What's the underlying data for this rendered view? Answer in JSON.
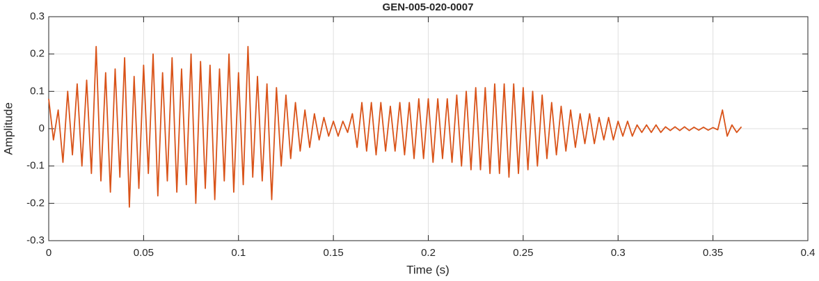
{
  "chart_data": {
    "type": "line",
    "title": "GEN-005-020-0007",
    "x_label": "Time (s)",
    "y_label": "Amplitude",
    "xlim": [
      0,
      0.4
    ],
    "xticks": [
      0,
      0.05,
      0.1,
      0.15,
      0.2,
      0.25,
      0.3,
      0.35,
      0.4
    ],
    "ylim": [
      -0.3,
      0.3
    ],
    "yticks": [
      -0.3,
      -0.2,
      -0.1,
      0,
      0.1,
      0.2,
      0.3
    ],
    "grid": true,
    "x": [
      0,
      0.0025,
      0.005,
      0.0075,
      0.01,
      0.0125,
      0.015,
      0.0175,
      0.02,
      0.0225,
      0.025,
      0.0275,
      0.03,
      0.0325,
      0.035,
      0.0375,
      0.04,
      0.0425,
      0.045,
      0.0475,
      0.05,
      0.0525,
      0.055,
      0.0575,
      0.06,
      0.0625,
      0.065,
      0.0675,
      0.07,
      0.0725,
      0.075,
      0.0775,
      0.08,
      0.0825,
      0.085,
      0.0875,
      0.09,
      0.0925,
      0.095,
      0.0975,
      0.1,
      0.1025,
      0.105,
      0.1075,
      0.11,
      0.1125,
      0.115,
      0.1175,
      0.12,
      0.1225,
      0.125,
      0.1275,
      0.13,
      0.1325,
      0.135,
      0.1375,
      0.14,
      0.1425,
      0.145,
      0.1475,
      0.15,
      0.1525,
      0.155,
      0.1575,
      0.16,
      0.1625,
      0.165,
      0.1675,
      0.17,
      0.1725,
      0.175,
      0.1775,
      0.18,
      0.1825,
      0.185,
      0.1875,
      0.19,
      0.1925,
      0.195,
      0.1975,
      0.2,
      0.2025,
      0.205,
      0.2075,
      0.21,
      0.2125,
      0.215,
      0.2175,
      0.22,
      0.2225,
      0.225,
      0.2275,
      0.23,
      0.2325,
      0.235,
      0.2375,
      0.24,
      0.2425,
      0.245,
      0.2475,
      0.25,
      0.2525,
      0.255,
      0.2575,
      0.26,
      0.2625,
      0.265,
      0.2675,
      0.27,
      0.2725,
      0.275,
      0.2775,
      0.28,
      0.2825,
      0.285,
      0.2875,
      0.29,
      0.2925,
      0.295,
      0.2975,
      0.3,
      0.3025,
      0.305,
      0.3075,
      0.31,
      0.3125,
      0.315,
      0.3175,
      0.32,
      0.3225,
      0.325,
      0.3275,
      0.33,
      0.3325,
      0.335,
      0.3375,
      0.34,
      0.3425,
      0.345,
      0.3475,
      0.35,
      0.3525,
      0.355,
      0.3575,
      0.36,
      0.3625,
      0.365
    ],
    "series": [
      {
        "color": "#d95319",
        "values": [
          0.08,
          -0.03,
          0.05,
          -0.09,
          0.1,
          -0.07,
          0.12,
          -0.1,
          0.13,
          -0.12,
          0.22,
          -0.14,
          0.15,
          -0.17,
          0.16,
          -0.13,
          0.19,
          -0.21,
          0.14,
          -0.16,
          0.17,
          -0.12,
          0.2,
          -0.18,
          0.15,
          -0.14,
          0.19,
          -0.17,
          0.16,
          -0.15,
          0.2,
          -0.2,
          0.18,
          -0.16,
          0.17,
          -0.19,
          0.16,
          -0.14,
          0.2,
          -0.17,
          0.15,
          -0.15,
          0.22,
          -0.13,
          0.14,
          -0.14,
          0.12,
          -0.19,
          0.11,
          -0.1,
          0.09,
          -0.08,
          0.07,
          -0.06,
          0.05,
          -0.05,
          0.04,
          -0.03,
          0.03,
          -0.02,
          0.02,
          -0.02,
          0.02,
          -0.01,
          0.04,
          -0.05,
          0.07,
          -0.06,
          0.07,
          -0.07,
          0.07,
          -0.06,
          0.06,
          -0.06,
          0.07,
          -0.07,
          0.07,
          -0.08,
          0.08,
          -0.08,
          0.08,
          -0.09,
          0.08,
          -0.08,
          0.08,
          -0.09,
          0.09,
          -0.1,
          0.1,
          -0.11,
          0.11,
          -0.11,
          0.11,
          -0.12,
          0.12,
          -0.12,
          0.12,
          -0.13,
          0.12,
          -0.12,
          0.11,
          -0.11,
          0.1,
          -0.1,
          0.09,
          -0.08,
          0.07,
          -0.07,
          0.06,
          -0.06,
          0.05,
          -0.05,
          0.04,
          -0.04,
          0.04,
          -0.04,
          0.03,
          -0.03,
          0.03,
          -0.03,
          0.02,
          -0.02,
          0.02,
          -0.02,
          0.01,
          -0.01,
          0.01,
          -0.01,
          0.01,
          -0.01,
          0.005,
          -0.005,
          0.005,
          -0.005,
          0.005,
          -0.005,
          0.004,
          -0.004,
          0.004,
          -0.004,
          0.003,
          -0.003,
          0.05,
          -0.02,
          0.01,
          -0.01,
          0.005
        ]
      }
    ]
  }
}
